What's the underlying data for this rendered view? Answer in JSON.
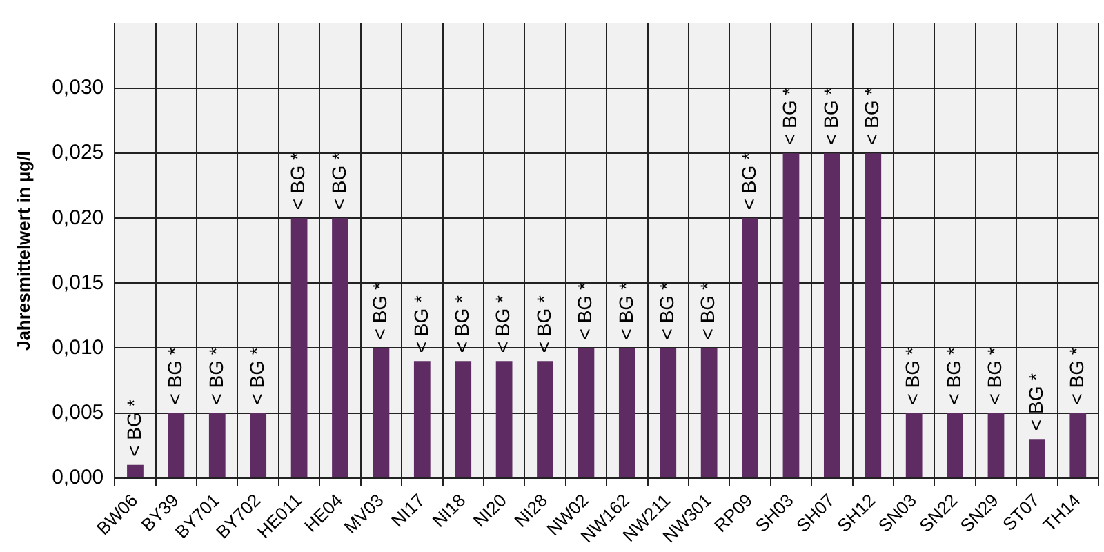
{
  "chart_data": {
    "type": "bar",
    "ylabel": "Jahresmittelwert in µg/l",
    "categories": [
      "BW06",
      "BY39",
      "BY701",
      "BY702",
      "HE011",
      "HE04",
      "MV03",
      "NI17",
      "NI18",
      "NI20",
      "NI28",
      "NW02",
      "NW162",
      "NW211",
      "NW301",
      "RP09",
      "SH03",
      "SH07",
      "SH12",
      "SN03",
      "SN22",
      "SN29",
      "ST07",
      "TH14"
    ],
    "values": [
      0.001,
      0.005,
      0.005,
      0.005,
      0.02,
      0.02,
      0.01,
      0.009,
      0.009,
      0.009,
      0.009,
      0.01,
      0.01,
      0.01,
      0.01,
      0.02,
      0.025,
      0.025,
      0.025,
      0.005,
      0.005,
      0.005,
      0.003,
      0.005
    ],
    "value_labels": [
      "< BG *",
      "< BG *",
      "< BG *",
      "< BG *",
      "< BG *",
      "< BG *",
      "< BG *",
      "< BG *",
      "< BG *",
      "< BG *",
      "< BG *",
      "< BG *",
      "< BG *",
      "< BG *",
      "< BG *",
      "< BG *",
      "< BG *",
      "< BG *",
      "< BG *",
      "< BG *",
      "< BG *",
      "< BG *",
      "< BG *",
      "< BG *"
    ],
    "color": "#5e2c62",
    "ylim": [
      0,
      0.035
    ],
    "yticks": [
      {
        "value": 0,
        "label": "0,000"
      },
      {
        "value": 0.005,
        "label": "0,005"
      },
      {
        "value": 0.01,
        "label": "0,010"
      },
      {
        "value": 0.015,
        "label": "0,015"
      },
      {
        "value": 0.02,
        "label": "0,020"
      },
      {
        "value": 0.025,
        "label": "0,025"
      },
      {
        "value": 0.03,
        "label": "0,030"
      }
    ],
    "grid": true,
    "legend": false
  }
}
